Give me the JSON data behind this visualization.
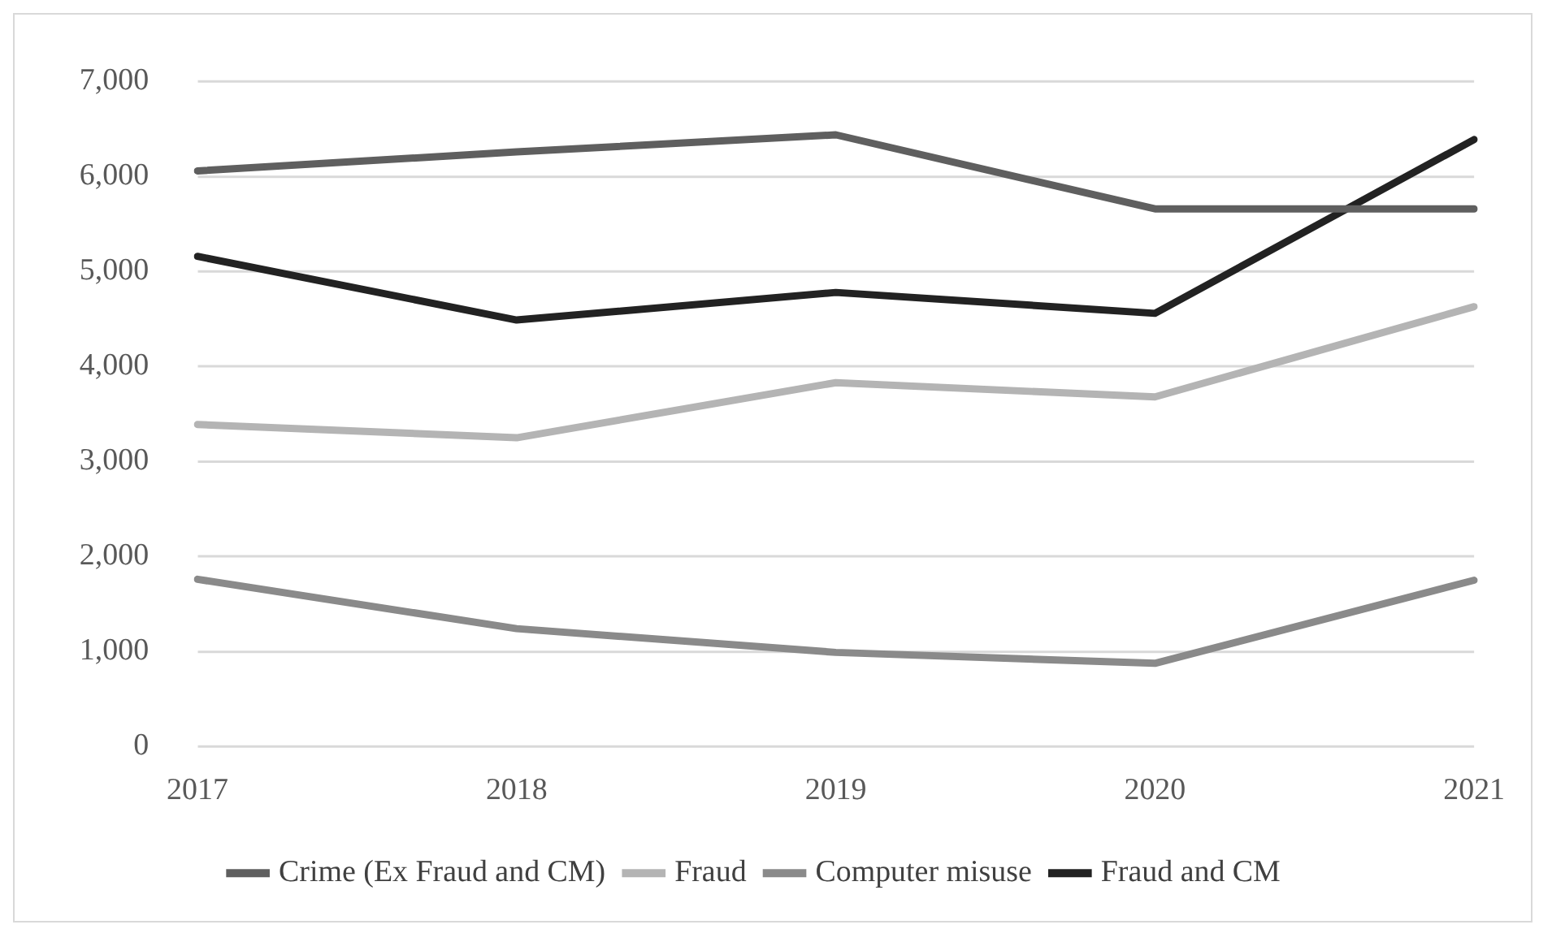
{
  "chart_data": {
    "type": "line",
    "categories": [
      "2017",
      "2018",
      "2019",
      "2020",
      "2021"
    ],
    "series": [
      {
        "name": "Crime (Ex Fraud and CM)",
        "color": "#5f5f5f",
        "values": [
          6060,
          6260,
          6440,
          5660,
          5660
        ]
      },
      {
        "name": "Fraud",
        "color": "#b4b4b4",
        "values": [
          3390,
          3250,
          3830,
          3680,
          4630
        ]
      },
      {
        "name": "Computer misuse",
        "color": "#8a8a8a",
        "values": [
          1760,
          1240,
          990,
          875,
          1750
        ]
      },
      {
        "name": "Fraud and CM",
        "color": "#222222",
        "values": [
          5160,
          4490,
          4780,
          4560,
          6390
        ]
      }
    ],
    "ylim": [
      0,
      7000
    ],
    "yticks": [
      {
        "value": 0,
        "label": "0"
      },
      {
        "value": 1000,
        "label": "1,000"
      },
      {
        "value": 2000,
        "label": "2,000"
      },
      {
        "value": 3000,
        "label": "3,000"
      },
      {
        "value": 4000,
        "label": "4,000"
      },
      {
        "value": 5000,
        "label": "5,000"
      },
      {
        "value": 6000,
        "label": "6,000"
      },
      {
        "value": 7000,
        "label": "7,000"
      }
    ],
    "grid": "y",
    "legend": "bottom",
    "marker": "none",
    "line_style": "solid"
  }
}
